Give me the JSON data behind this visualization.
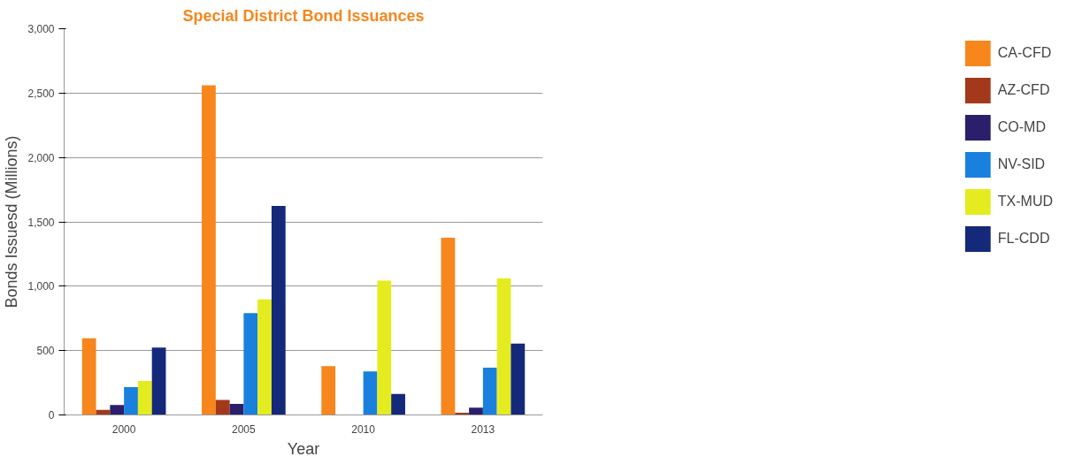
{
  "chart_data": {
    "type": "bar",
    "title": "Special District Bond Issuances",
    "xlabel": "Year",
    "ylabel": "Bonds Issuesd (Millions)",
    "categories": [
      "2000",
      "2005",
      "2010",
      "2013"
    ],
    "series": [
      {
        "name": "CA-CFD",
        "color": "#f7861c",
        "values": [
          595,
          2560,
          380,
          1377
        ]
      },
      {
        "name": "AZ-CFD",
        "color": "#a3391b",
        "values": [
          39,
          116,
          0,
          18
        ]
      },
      {
        "name": "CO-MD",
        "color": "#2b1f6b",
        "values": [
          78,
          85,
          0,
          57
        ]
      },
      {
        "name": "NV-SID",
        "color": "#1a80de",
        "values": [
          217,
          792,
          338,
          367
        ]
      },
      {
        "name": "TX-MUD",
        "color": "#e4ec1f",
        "values": [
          264,
          898,
          1043,
          1061
        ]
      },
      {
        "name": "FL-CDD",
        "color": "#15297a",
        "values": [
          523,
          1623,
          163,
          555
        ]
      }
    ],
    "ylim": [
      0,
      3000
    ],
    "yticks": [
      0,
      {
        "value": 500,
        "label": "500"
      },
      {
        "value": 1000,
        "label": "1,000"
      },
      {
        "value": 1500,
        "label": "1,500"
      },
      {
        "value": 2000,
        "label": "2,000"
      },
      {
        "value": 2500,
        "label": "2,500"
      },
      {
        "value": 3000,
        "label": "3,000"
      }
    ],
    "grid": "y",
    "legend": "right"
  }
}
